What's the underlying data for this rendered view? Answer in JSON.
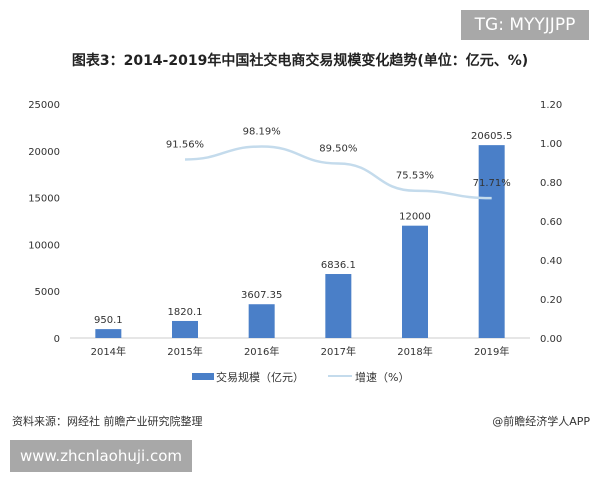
{
  "watermark_top": "TG: MYYJJPP",
  "watermark_bottom": "www.zhcnlaohuji.com",
  "source": "资料来源：网经社 前瞻产业研究院整理",
  "credit": "@前瞻经济学人APP",
  "chart_data": {
    "type": "bar+line",
    "title": "图表3：2014-2019年中国社交电商交易规模变化趋势(单位：亿元、%)",
    "categories": [
      "2014年",
      "2015年",
      "2016年",
      "2017年",
      "2018年",
      "2019年"
    ],
    "series": [
      {
        "name": "交易规模（亿元）",
        "type": "bar",
        "axis": "left",
        "values": [
          950.1,
          1820.1,
          3607.35,
          6836.1,
          12000,
          20605.5
        ],
        "labels": [
          "950.1",
          "1820.1",
          "3607.35",
          "6836.1",
          "12000",
          "20605.5"
        ],
        "color": "#4a7fc8"
      },
      {
        "name": "增速（%）",
        "type": "line",
        "axis": "right",
        "values": [
          null,
          0.9156,
          0.9819,
          0.895,
          0.7553,
          0.7171
        ],
        "labels": [
          "",
          "91.56%",
          "98.19%",
          "89.50%",
          "75.53%",
          "71.71%"
        ],
        "color": "#c4dbec"
      }
    ],
    "yleft": {
      "lim": [
        0,
        25000
      ],
      "ticks": [
        "0",
        "5000",
        "10000",
        "15000",
        "20000",
        "25000"
      ]
    },
    "yright": {
      "lim": [
        0,
        1.2
      ],
      "ticks": [
        "0.00",
        "0.20",
        "0.40",
        "0.60",
        "0.80",
        "1.00",
        "1.20"
      ]
    },
    "grid": false,
    "legend": "bottom"
  }
}
